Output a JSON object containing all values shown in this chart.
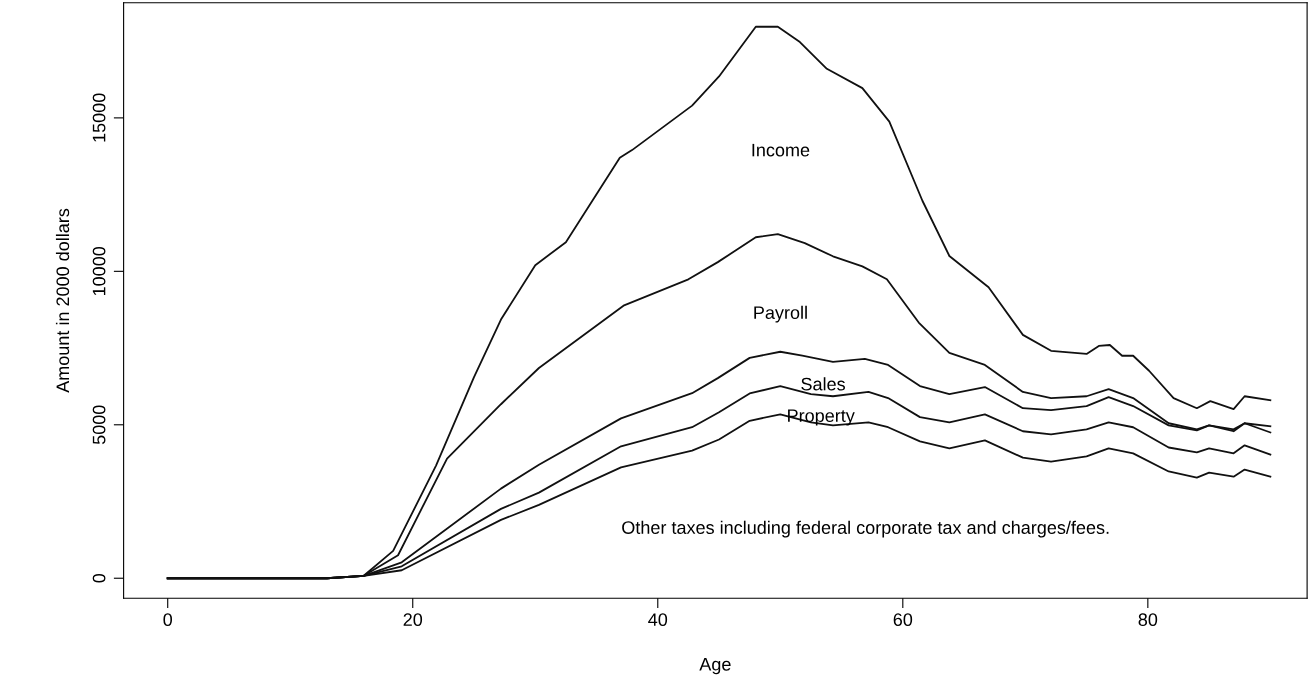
{
  "chart_data": {
    "type": "line",
    "xlabel": "Age",
    "ylabel": "Amount in 2000 dollars",
    "xlim": [
      -3.6,
      93
    ],
    "ylim": [
      -650,
      18750
    ],
    "xticks": [
      0,
      20,
      40,
      60,
      80
    ],
    "yticks": [
      0,
      5000,
      10000,
      15000
    ],
    "grid": false,
    "marker": "none",
    "line_style": "solid",
    "series": [
      {
        "color": "#111111",
        "x": [
          0,
          13,
          16,
          18.4,
          21.9,
          25,
          27.2,
          30,
          32.5,
          36.9,
          37.9,
          42.8,
          45,
          48,
          49.8,
          51.6,
          53.8,
          56.7,
          58.9,
          61.6,
          63.8,
          67,
          69.8,
          72.1,
          75,
          76,
          76.9,
          77.9,
          78.8,
          80.1,
          82.1,
          84,
          85.1,
          87,
          87.9,
          90
        ],
        "values": [
          0,
          0,
          80,
          890,
          3670,
          6550,
          8430,
          10200,
          10950,
          13700,
          13950,
          15400,
          16350,
          17970,
          17970,
          17470,
          16600,
          15970,
          14880,
          12300,
          10500,
          9480,
          7930,
          7410,
          7310,
          7570,
          7600,
          7250,
          7250,
          6760,
          5870,
          5540,
          5770,
          5510,
          5930,
          5800
        ]
      },
      {
        "color": "#111111",
        "x": [
          0,
          13,
          16,
          18.8,
          22.8,
          27.2,
          30.3,
          37.2,
          42.5,
          44.9,
          48,
          49.8,
          52,
          54.3,
          56.7,
          58.7,
          61.3,
          63.8,
          66.7,
          69.8,
          72.1,
          75,
          76.8,
          78.8,
          81.7,
          84,
          85,
          87,
          87.9,
          90
        ],
        "values": [
          0,
          0,
          80,
          750,
          3900,
          5670,
          6850,
          8880,
          9740,
          10300,
          11110,
          11210,
          10920,
          10490,
          10160,
          9740,
          8330,
          7340,
          6950,
          6070,
          5870,
          5930,
          6160,
          5870,
          5050,
          4850,
          4980,
          4850,
          5050,
          4950
        ]
      },
      {
        "color": "#111111",
        "x": [
          0,
          13,
          16,
          19.1,
          27.2,
          30.3,
          37,
          42.8,
          44.9,
          47.5,
          50,
          51.8,
          54.3,
          56.9,
          58.8,
          61.4,
          63.8,
          66.7,
          69.8,
          72.1,
          75,
          76.8,
          78.8,
          81.7,
          84,
          85,
          87,
          87.9,
          90
        ],
        "values": [
          0,
          0,
          80,
          520,
          2920,
          3700,
          5210,
          6030,
          6520,
          7180,
          7380,
          7250,
          7050,
          7150,
          6950,
          6260,
          6000,
          6230,
          5540,
          5480,
          5610,
          5900,
          5610,
          4980,
          4820,
          4980,
          4790,
          5050,
          4750
        ]
      },
      {
        "color": "#111111",
        "x": [
          0,
          13,
          16,
          19.1,
          27.2,
          30.3,
          37,
          42.8,
          45,
          47.5,
          50,
          52.5,
          54.3,
          57.2,
          58.8,
          61.4,
          63.8,
          66.7,
          69.8,
          72.1,
          75,
          76.8,
          78.8,
          81.7,
          84,
          85,
          87,
          87.9,
          90
        ],
        "values": [
          0,
          0,
          80,
          390,
          2260,
          2790,
          4300,
          4920,
          5410,
          6020,
          6260,
          6000,
          5930,
          6070,
          5870,
          5250,
          5080,
          5340,
          4790,
          4690,
          4850,
          5080,
          4920,
          4260,
          4100,
          4230,
          4070,
          4330,
          4030
        ]
      },
      {
        "color": "#111111",
        "x": [
          0,
          13,
          16,
          19.1,
          27.2,
          30.3,
          37,
          42.8,
          45,
          47.5,
          50,
          52.5,
          54.3,
          57.2,
          58.8,
          61.4,
          63.8,
          66.7,
          69.8,
          72.1,
          75,
          76.8,
          78.8,
          81.7,
          84,
          85,
          87,
          87.9,
          90
        ],
        "values": [
          0,
          0,
          80,
          260,
          1900,
          2390,
          3610,
          4160,
          4520,
          5130,
          5340,
          5080,
          4980,
          5080,
          4920,
          4460,
          4230,
          4490,
          3930,
          3800,
          3970,
          4230,
          4070,
          3480,
          3280,
          3440,
          3310,
          3540,
          3310
        ]
      }
    ],
    "annotations": [
      "Income",
      "Payroll",
      "Sales",
      "Property",
      "Other taxes including federal corporate tax and charges/fees."
    ]
  }
}
